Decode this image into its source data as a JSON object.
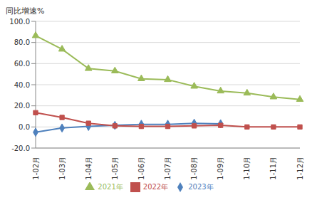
{
  "chart_data": {
    "type": "line",
    "y_label": "同比增速%",
    "categories": [
      "1-02月",
      "1-03月",
      "1-04月",
      "1-05月",
      "1-06月",
      "1-07月",
      "1-08月",
      "1-09月",
      "1-10月",
      "1-11月",
      "1-12月"
    ],
    "series": [
      {
        "name": "2023年",
        "color": "#4f81bd",
        "marker": "diamond",
        "values": [
          -5.0,
          -1.0,
          0.5,
          1.5,
          2.5,
          2.5,
          3.5,
          3.0,
          null,
          null,
          null
        ]
      },
      {
        "name": "2022年",
        "color": "#c0504d",
        "marker": "square",
        "values": [
          13.5,
          9.0,
          3.5,
          1.0,
          0.5,
          0.5,
          1.0,
          1.5,
          0.0,
          0.0,
          0.0
        ]
      },
      {
        "name": "2021年",
        "color": "#9bbb59",
        "marker": "triangle",
        "values": [
          86.4,
          73.6,
          55.3,
          53.0,
          45.6,
          44.8,
          38.5,
          34.0,
          32.0,
          28.4,
          26.0
        ]
      }
    ],
    "ylim": [
      -20,
      100
    ],
    "yticks": [
      {
        "value": -20,
        "label": "-20.0"
      },
      {
        "value": 0,
        "label": "0.0"
      },
      {
        "value": 20,
        "label": "20.0"
      },
      {
        "value": 40,
        "label": "40.0"
      },
      {
        "value": 60,
        "label": "60.0"
      },
      {
        "value": 80,
        "label": "80.0"
      },
      {
        "value": 100,
        "label": "100.0"
      }
    ],
    "grid": true,
    "legend": "bottom"
  }
}
